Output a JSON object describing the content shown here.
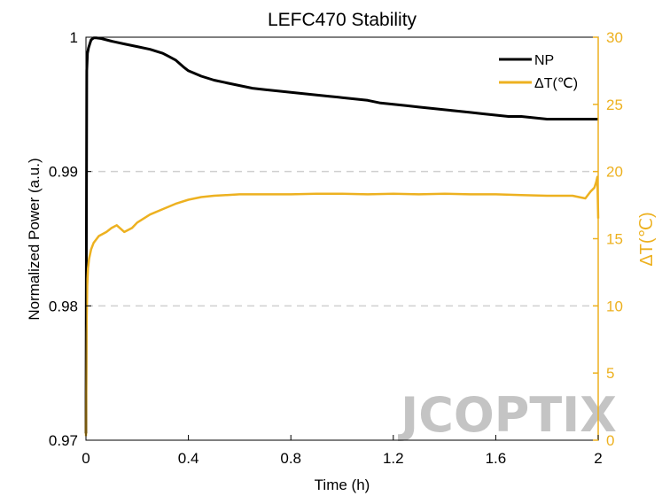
{
  "chart_data": {
    "type": "line",
    "title": "LEFC470 Stability",
    "xlabel": "Time (h)",
    "ylabel": "Normalized Power (a.u.)",
    "y2label": "ΔT(℃)",
    "xlim": [
      0,
      2
    ],
    "ylim": [
      0.97,
      1.0
    ],
    "y2lim": [
      0,
      30
    ],
    "x_ticks": [
      {
        "value": 0,
        "label": "0"
      },
      {
        "value": 0.4,
        "label": "0.4"
      },
      {
        "value": 0.8,
        "label": "0.8"
      },
      {
        "value": 1.2,
        "label": "1.2"
      },
      {
        "value": 1.6,
        "label": "1.6"
      },
      {
        "value": 2,
        "label": "2"
      }
    ],
    "y_ticks": [
      {
        "value": 0.97,
        "label": "0.97"
      },
      {
        "value": 0.98,
        "label": "0.98"
      },
      {
        "value": 0.99,
        "label": "0.99"
      },
      {
        "value": 1.0,
        "label": "1"
      }
    ],
    "y2_ticks": [
      {
        "value": 0,
        "label": "0"
      },
      {
        "value": 5,
        "label": "5"
      },
      {
        "value": 10,
        "label": "10"
      },
      {
        "value": 15,
        "label": "15"
      },
      {
        "value": 20,
        "label": "20"
      },
      {
        "value": 25,
        "label": "25"
      },
      {
        "value": 30,
        "label": "30"
      }
    ],
    "grid_y": [
      0.98,
      0.99
    ],
    "legend_position": "top-right",
    "colors": {
      "np": "#000000",
      "dt": "#EDB120",
      "grid": "#d0d0d0"
    },
    "series": [
      {
        "name": "NP",
        "axis": "left",
        "x": [
          0.0,
          0.003,
          0.006,
          0.01,
          0.015,
          0.02,
          0.03,
          0.04,
          0.06,
          0.08,
          0.1,
          0.15,
          0.2,
          0.25,
          0.3,
          0.32,
          0.35,
          0.38,
          0.4,
          0.45,
          0.5,
          0.55,
          0.6,
          0.65,
          0.7,
          0.75,
          0.8,
          0.85,
          0.9,
          0.95,
          1.0,
          1.05,
          1.1,
          1.15,
          1.2,
          1.25,
          1.3,
          1.35,
          1.4,
          1.45,
          1.5,
          1.55,
          1.6,
          1.65,
          1.7,
          1.75,
          1.8,
          1.85,
          1.9,
          1.95,
          2.0
        ],
        "values": [
          0.9705,
          0.9975,
          0.9988,
          0.9992,
          0.9995,
          0.9998,
          0.99995,
          0.99995,
          0.9999,
          0.9998,
          0.9997,
          0.9995,
          0.9993,
          0.9991,
          0.9988,
          0.9986,
          0.9983,
          0.9978,
          0.9975,
          0.9971,
          0.9968,
          0.9966,
          0.9964,
          0.9962,
          0.9961,
          0.996,
          0.9959,
          0.9958,
          0.9957,
          0.9956,
          0.9955,
          0.9954,
          0.9953,
          0.9951,
          0.995,
          0.9949,
          0.9948,
          0.9947,
          0.9946,
          0.9945,
          0.9944,
          0.9943,
          0.9942,
          0.9941,
          0.9941,
          0.994,
          0.9939,
          0.9939,
          0.9939,
          0.9939,
          0.9939
        ]
      },
      {
        "name": "ΔT(℃)",
        "axis": "right",
        "x": [
          0.0,
          0.002,
          0.005,
          0.008,
          0.012,
          0.02,
          0.03,
          0.05,
          0.08,
          0.1,
          0.12,
          0.15,
          0.18,
          0.2,
          0.25,
          0.3,
          0.35,
          0.4,
          0.45,
          0.5,
          0.55,
          0.6,
          0.7,
          0.8,
          0.9,
          1.0,
          1.1,
          1.2,
          1.3,
          1.4,
          1.5,
          1.6,
          1.7,
          1.8,
          1.9,
          1.95,
          1.97,
          1.985,
          1.992,
          1.997,
          2.0
        ],
        "values": [
          0.3,
          8.0,
          11.5,
          12.8,
          13.5,
          14.2,
          14.7,
          15.2,
          15.5,
          15.8,
          16.0,
          15.5,
          15.8,
          16.2,
          16.8,
          17.2,
          17.6,
          17.9,
          18.1,
          18.2,
          18.25,
          18.3,
          18.3,
          18.3,
          18.35,
          18.35,
          18.3,
          18.35,
          18.3,
          18.35,
          18.3,
          18.3,
          18.25,
          18.2,
          18.2,
          18.0,
          18.5,
          18.8,
          19.2,
          19.6,
          16.5
        ]
      }
    ]
  },
  "watermark": "JCOPTIX"
}
